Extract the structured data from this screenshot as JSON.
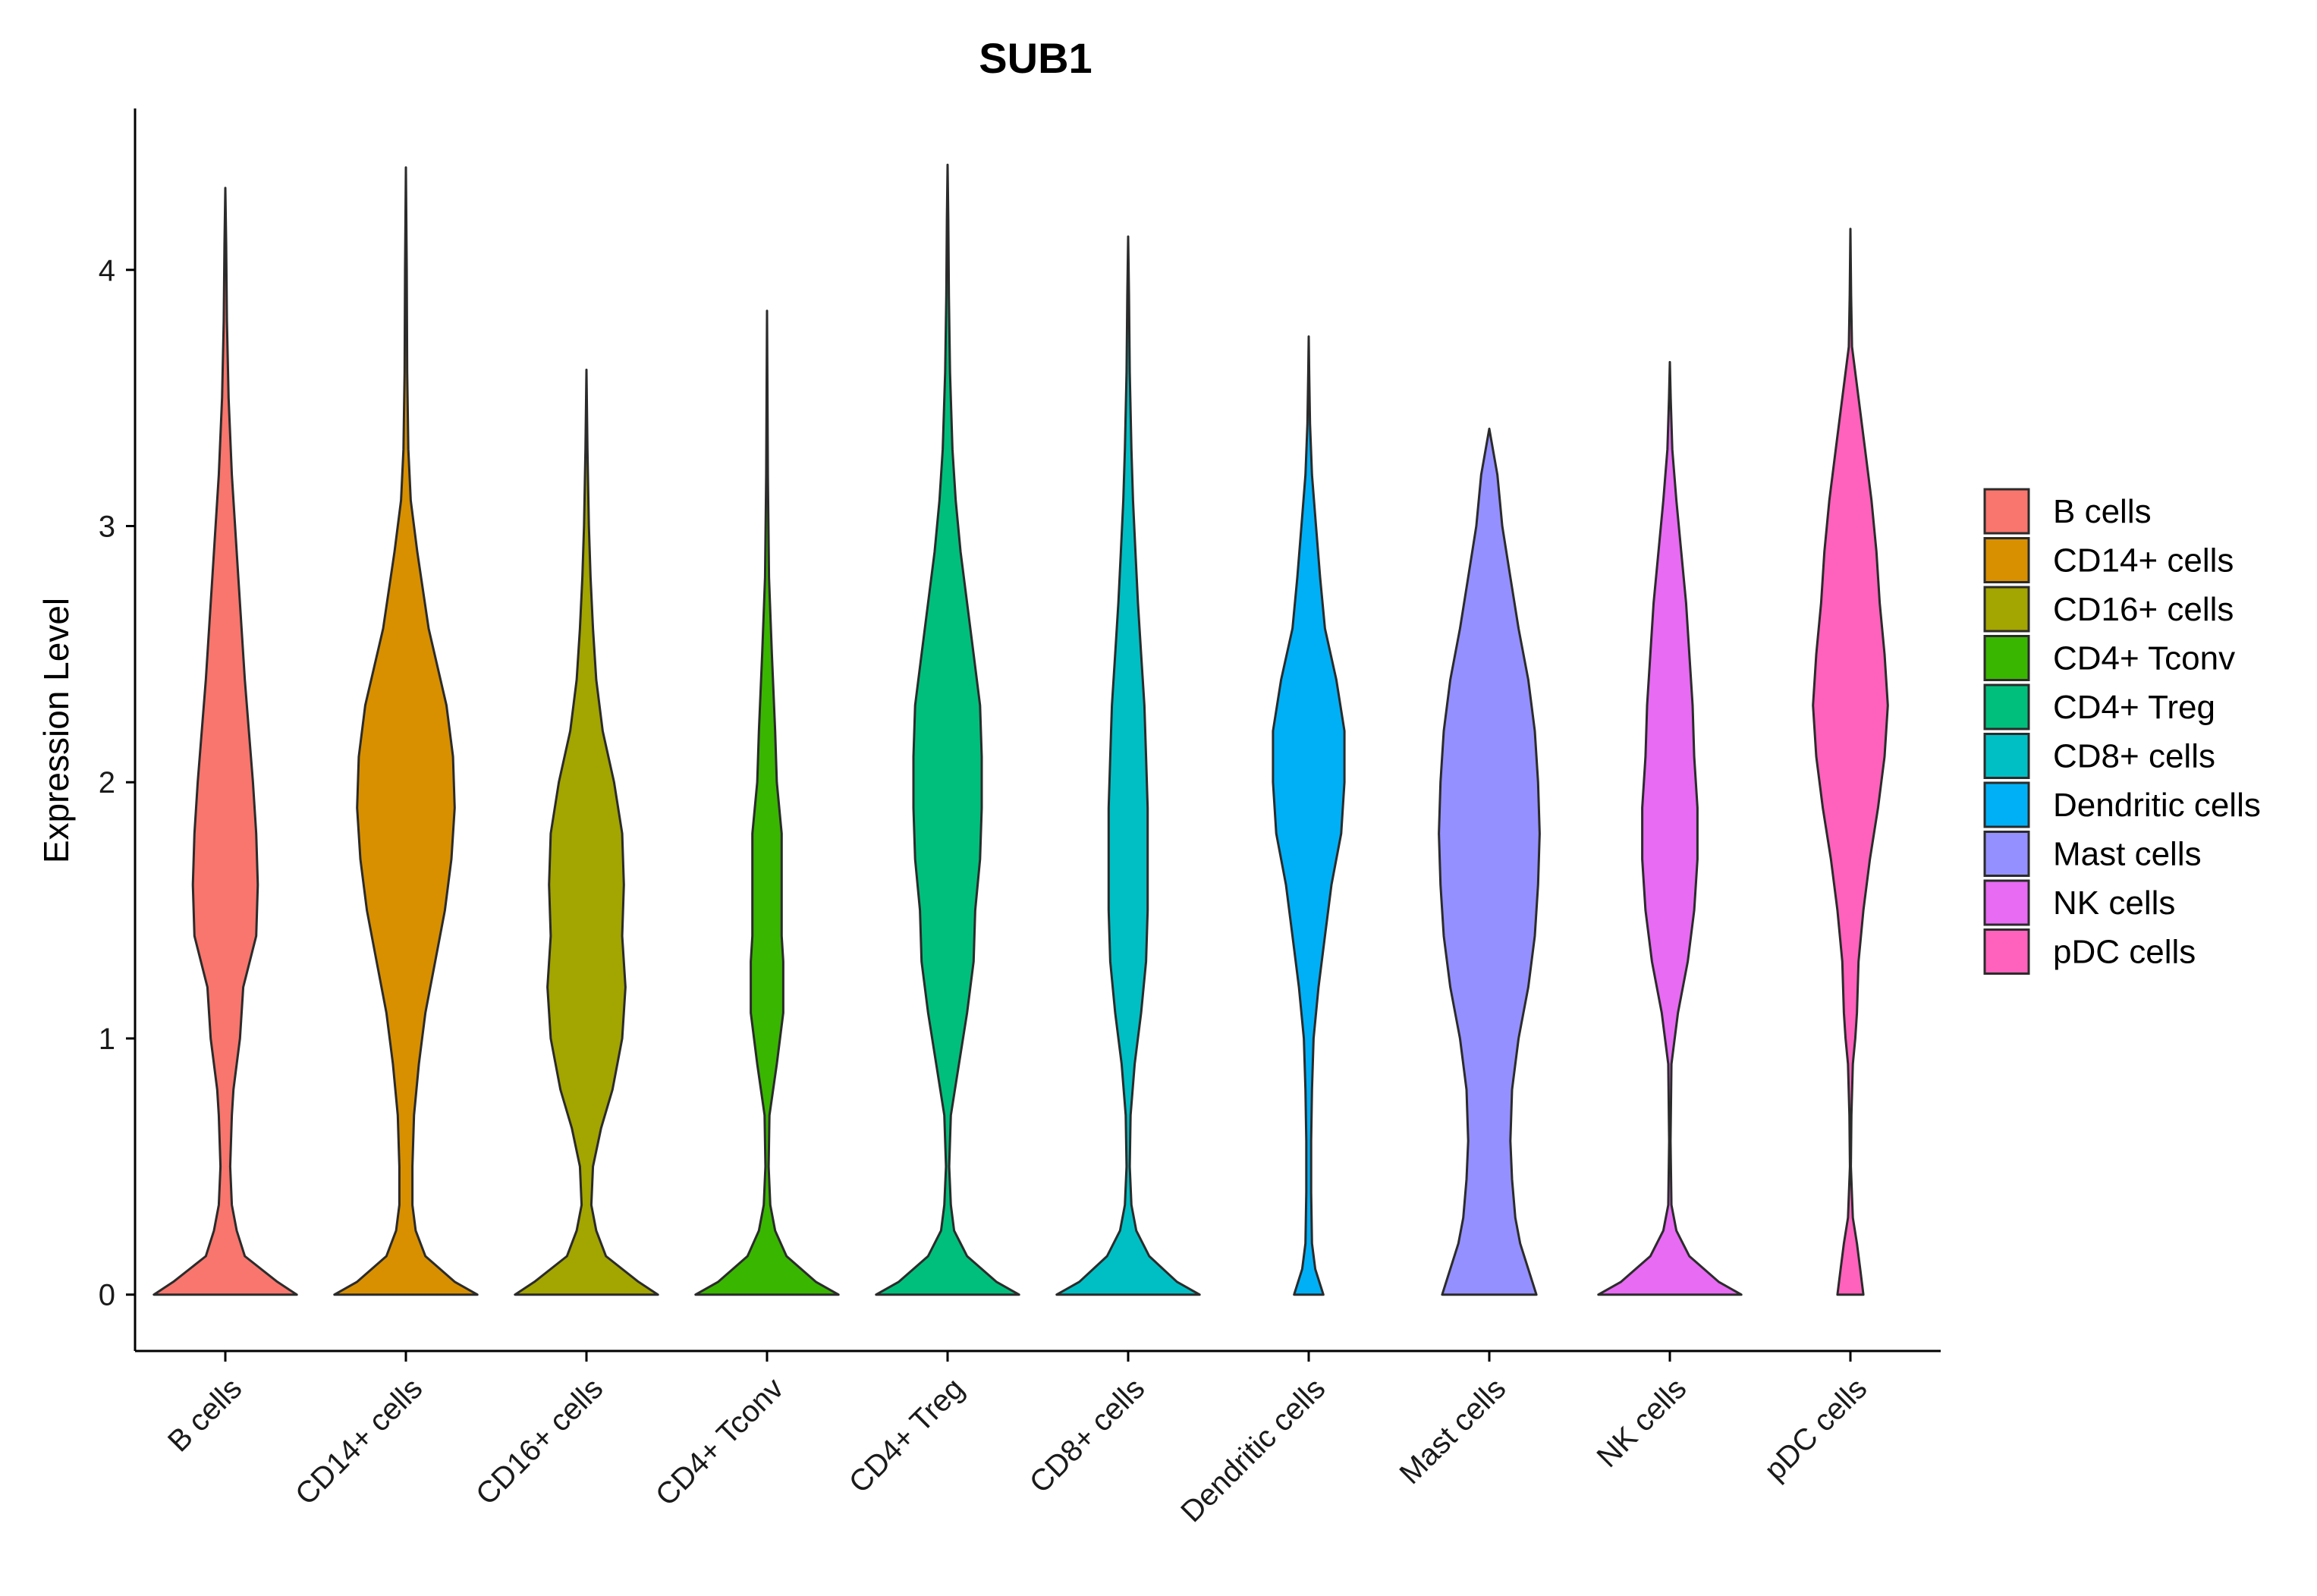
{
  "chart_data": {
    "type": "violin",
    "title": "SUB1",
    "xlabel": "",
    "ylabel": "Expression Level",
    "ylim": [
      -0.22,
      4.63
    ],
    "yticks": [
      0,
      1,
      2,
      3,
      4
    ],
    "legend_position": "right",
    "categories": [
      "B cells",
      "CD14+ cells",
      "CD16+ cells",
      "CD4+ Tconv",
      "CD4+ Treg",
      "CD8+ cells",
      "Dendritic cells",
      "Mast cells",
      "NK cells",
      "pDC cells"
    ],
    "colors": [
      "#F8766D",
      "#D89000",
      "#A3A500",
      "#39B600",
      "#00BF7D",
      "#00BFC4",
      "#00B0F6",
      "#9590FF",
      "#E76BF3",
      "#FF62BC"
    ],
    "series": [
      {
        "name": "B cells",
        "max": 4.32,
        "profile": [
          [
            0,
            0.44
          ],
          [
            0.05,
            0.32
          ],
          [
            0.15,
            0.12
          ],
          [
            0.25,
            0.07
          ],
          [
            0.35,
            0.04
          ],
          [
            0.5,
            0.03
          ],
          [
            0.7,
            0.04
          ],
          [
            0.8,
            0.05
          ],
          [
            1.0,
            0.09
          ],
          [
            1.2,
            0.11
          ],
          [
            1.4,
            0.19
          ],
          [
            1.6,
            0.2
          ],
          [
            1.8,
            0.19
          ],
          [
            2.0,
            0.17
          ],
          [
            2.4,
            0.12
          ],
          [
            2.8,
            0.08
          ],
          [
            3.2,
            0.04
          ],
          [
            3.5,
            0.02
          ],
          [
            3.8,
            0.01
          ],
          [
            4.1,
            0.005
          ],
          [
            4.32,
            0
          ]
        ]
      },
      {
        "name": "CD14+ cells",
        "max": 4.4,
        "profile": [
          [
            0,
            0.44
          ],
          [
            0.05,
            0.3
          ],
          [
            0.15,
            0.12
          ],
          [
            0.25,
            0.06
          ],
          [
            0.35,
            0.04
          ],
          [
            0.5,
            0.04
          ],
          [
            0.7,
            0.05
          ],
          [
            0.9,
            0.08
          ],
          [
            1.1,
            0.12
          ],
          [
            1.3,
            0.18
          ],
          [
            1.5,
            0.24
          ],
          [
            1.7,
            0.28
          ],
          [
            1.9,
            0.3
          ],
          [
            2.1,
            0.29
          ],
          [
            2.3,
            0.25
          ],
          [
            2.6,
            0.14
          ],
          [
            2.9,
            0.07
          ],
          [
            3.1,
            0.03
          ],
          [
            3.3,
            0.015
          ],
          [
            3.6,
            0.008
          ],
          [
            4.0,
            0.005
          ],
          [
            4.4,
            0
          ]
        ]
      },
      {
        "name": "CD16+ cells",
        "max": 3.61,
        "profile": [
          [
            0,
            0.44
          ],
          [
            0.05,
            0.32
          ],
          [
            0.15,
            0.12
          ],
          [
            0.25,
            0.06
          ],
          [
            0.35,
            0.03
          ],
          [
            0.5,
            0.04
          ],
          [
            0.65,
            0.09
          ],
          [
            0.8,
            0.16
          ],
          [
            1.0,
            0.22
          ],
          [
            1.2,
            0.24
          ],
          [
            1.4,
            0.22
          ],
          [
            1.6,
            0.23
          ],
          [
            1.8,
            0.22
          ],
          [
            2.0,
            0.17
          ],
          [
            2.2,
            0.1
          ],
          [
            2.4,
            0.06
          ],
          [
            2.6,
            0.04
          ],
          [
            2.8,
            0.025
          ],
          [
            3.0,
            0.015
          ],
          [
            3.3,
            0.006
          ],
          [
            3.61,
            0
          ]
        ]
      },
      {
        "name": "CD4+ Tconv",
        "max": 3.84,
        "profile": [
          [
            0,
            0.44
          ],
          [
            0.05,
            0.3
          ],
          [
            0.15,
            0.12
          ],
          [
            0.25,
            0.05
          ],
          [
            0.35,
            0.02
          ],
          [
            0.5,
            0.01
          ],
          [
            0.7,
            0.015
          ],
          [
            0.9,
            0.06
          ],
          [
            1.1,
            0.1
          ],
          [
            1.3,
            0.1
          ],
          [
            1.4,
            0.09
          ],
          [
            1.6,
            0.09
          ],
          [
            1.8,
            0.09
          ],
          [
            2.0,
            0.06
          ],
          [
            2.2,
            0.05
          ],
          [
            2.5,
            0.03
          ],
          [
            2.8,
            0.012
          ],
          [
            3.2,
            0.005
          ],
          [
            3.5,
            0.003
          ],
          [
            3.84,
            0
          ]
        ]
      },
      {
        "name": "CD4+ Treg",
        "max": 4.41,
        "profile": [
          [
            0,
            0.44
          ],
          [
            0.05,
            0.3
          ],
          [
            0.15,
            0.12
          ],
          [
            0.25,
            0.04
          ],
          [
            0.35,
            0.02
          ],
          [
            0.5,
            0.01
          ],
          [
            0.7,
            0.02
          ],
          [
            0.9,
            0.07
          ],
          [
            1.1,
            0.12
          ],
          [
            1.3,
            0.16
          ],
          [
            1.5,
            0.17
          ],
          [
            1.7,
            0.2
          ],
          [
            1.9,
            0.21
          ],
          [
            2.1,
            0.21
          ],
          [
            2.3,
            0.2
          ],
          [
            2.5,
            0.16
          ],
          [
            2.7,
            0.12
          ],
          [
            2.9,
            0.08
          ],
          [
            3.1,
            0.05
          ],
          [
            3.3,
            0.03
          ],
          [
            3.6,
            0.015
          ],
          [
            3.9,
            0.008
          ],
          [
            4.2,
            0.004
          ],
          [
            4.41,
            0
          ]
        ]
      },
      {
        "name": "CD8+ cells",
        "max": 4.13,
        "profile": [
          [
            0,
            0.44
          ],
          [
            0.05,
            0.3
          ],
          [
            0.15,
            0.13
          ],
          [
            0.25,
            0.05
          ],
          [
            0.35,
            0.02
          ],
          [
            0.5,
            0.01
          ],
          [
            0.7,
            0.015
          ],
          [
            0.9,
            0.04
          ],
          [
            1.1,
            0.08
          ],
          [
            1.3,
            0.11
          ],
          [
            1.5,
            0.12
          ],
          [
            1.7,
            0.12
          ],
          [
            1.9,
            0.12
          ],
          [
            2.1,
            0.11
          ],
          [
            2.3,
            0.1
          ],
          [
            2.5,
            0.08
          ],
          [
            2.7,
            0.06
          ],
          [
            2.9,
            0.045
          ],
          [
            3.1,
            0.03
          ],
          [
            3.3,
            0.02
          ],
          [
            3.6,
            0.01
          ],
          [
            3.9,
            0.005
          ],
          [
            4.13,
            0
          ]
        ]
      },
      {
        "name": "Dendritic cells",
        "max": 3.74,
        "profile": [
          [
            0,
            0.09
          ],
          [
            0.1,
            0.04
          ],
          [
            0.2,
            0.02
          ],
          [
            0.4,
            0.015
          ],
          [
            0.6,
            0.015
          ],
          [
            0.8,
            0.02
          ],
          [
            1.0,
            0.03
          ],
          [
            1.2,
            0.06
          ],
          [
            1.4,
            0.1
          ],
          [
            1.6,
            0.14
          ],
          [
            1.8,
            0.2
          ],
          [
            2.0,
            0.22
          ],
          [
            2.2,
            0.22
          ],
          [
            2.4,
            0.17
          ],
          [
            2.6,
            0.1
          ],
          [
            2.8,
            0.07
          ],
          [
            3.0,
            0.045
          ],
          [
            3.2,
            0.02
          ],
          [
            3.4,
            0.008
          ],
          [
            3.6,
            0.003
          ],
          [
            3.74,
            0
          ]
        ]
      },
      {
        "name": "Mast cells",
        "max": 3.38,
        "profile": [
          [
            0,
            0.29
          ],
          [
            0.1,
            0.24
          ],
          [
            0.2,
            0.19
          ],
          [
            0.3,
            0.16
          ],
          [
            0.45,
            0.14
          ],
          [
            0.6,
            0.13
          ],
          [
            0.8,
            0.14
          ],
          [
            1.0,
            0.18
          ],
          [
            1.2,
            0.24
          ],
          [
            1.4,
            0.28
          ],
          [
            1.6,
            0.3
          ],
          [
            1.8,
            0.31
          ],
          [
            2.0,
            0.3
          ],
          [
            2.2,
            0.28
          ],
          [
            2.4,
            0.24
          ],
          [
            2.6,
            0.18
          ],
          [
            2.8,
            0.13
          ],
          [
            3.0,
            0.08
          ],
          [
            3.2,
            0.05
          ],
          [
            3.38,
            0
          ]
        ]
      },
      {
        "name": "NK cells",
        "max": 3.64,
        "profile": [
          [
            0,
            0.44
          ],
          [
            0.05,
            0.3
          ],
          [
            0.15,
            0.12
          ],
          [
            0.25,
            0.04
          ],
          [
            0.35,
            0.01
          ],
          [
            0.6,
            0.004
          ],
          [
            0.9,
            0.01
          ],
          [
            1.1,
            0.05
          ],
          [
            1.3,
            0.11
          ],
          [
            1.5,
            0.15
          ],
          [
            1.7,
            0.17
          ],
          [
            1.9,
            0.17
          ],
          [
            2.1,
            0.15
          ],
          [
            2.3,
            0.14
          ],
          [
            2.5,
            0.12
          ],
          [
            2.7,
            0.1
          ],
          [
            2.9,
            0.07
          ],
          [
            3.1,
            0.04
          ],
          [
            3.3,
            0.015
          ],
          [
            3.5,
            0.005
          ],
          [
            3.64,
            0
          ]
        ]
      },
      {
        "name": "pDC cells",
        "max": 4.16,
        "profile": [
          [
            0,
            0.08
          ],
          [
            0.1,
            0.06
          ],
          [
            0.2,
            0.04
          ],
          [
            0.3,
            0.015
          ],
          [
            0.5,
            0.003
          ],
          [
            0.7,
            0.006
          ],
          [
            0.9,
            0.015
          ],
          [
            1.0,
            0.03
          ],
          [
            1.1,
            0.04
          ],
          [
            1.3,
            0.05
          ],
          [
            1.5,
            0.08
          ],
          [
            1.7,
            0.12
          ],
          [
            1.9,
            0.17
          ],
          [
            2.1,
            0.21
          ],
          [
            2.3,
            0.23
          ],
          [
            2.5,
            0.21
          ],
          [
            2.7,
            0.18
          ],
          [
            2.9,
            0.16
          ],
          [
            3.1,
            0.13
          ],
          [
            3.3,
            0.09
          ],
          [
            3.5,
            0.05
          ],
          [
            3.7,
            0.01
          ],
          [
            3.9,
            0.004
          ],
          [
            4.16,
            0
          ]
        ]
      }
    ]
  }
}
